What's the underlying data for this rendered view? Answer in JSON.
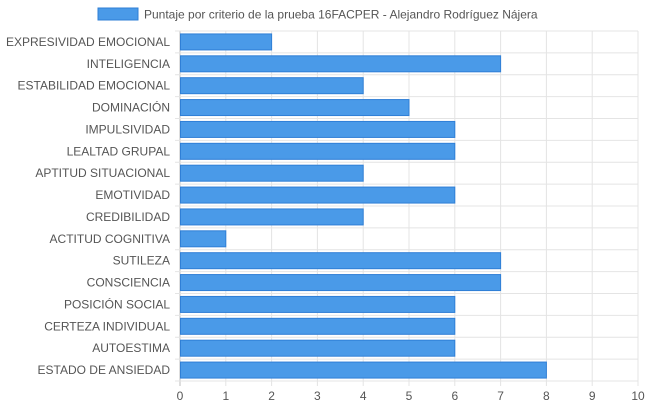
{
  "chart_data": {
    "type": "bar",
    "orientation": "horizontal",
    "legend": {
      "position": "top",
      "label": "Puntaje por criterio de la prueba 16FACPER - Alejandro Rodríguez Nájera"
    },
    "categories": [
      "EXPRESIVIDAD EMOCIONAL",
      "INTELIGENCIA",
      "ESTABILIDAD EMOCIONAL",
      "DOMINACIÓN",
      "IMPULSIVIDAD",
      "LEALTAD GRUPAL",
      "APTITUD SITUACIONAL",
      "EMOTIVIDAD",
      "CREDIBILIDAD",
      "ACTITUD COGNITIVA",
      "SUTILEZA",
      "CONSCIENCIA",
      "POSICIÓN SOCIAL",
      "CERTEZA INDIVIDUAL",
      "AUTOESTIMA",
      "ESTADO DE ANSIEDAD"
    ],
    "series": [
      {
        "name": "Puntaje por criterio de la prueba 16FACPER - Alejandro Rodríguez Nájera",
        "values": [
          2,
          7,
          4,
          5,
          6,
          6,
          4,
          6,
          4,
          1,
          7,
          7,
          6,
          6,
          6,
          8
        ]
      }
    ],
    "xlim": [
      0,
      10
    ],
    "x_ticks": [
      "0",
      "1",
      "2",
      "3",
      "4",
      "5",
      "6",
      "7",
      "8",
      "9",
      "10"
    ],
    "grid": true,
    "colors": {
      "bar_fill": "#4a9ae8",
      "bar_stroke": "#2f7fd6",
      "grid": "#e4e4e4",
      "axis": "#bdbdbd",
      "label": "#555555"
    }
  }
}
